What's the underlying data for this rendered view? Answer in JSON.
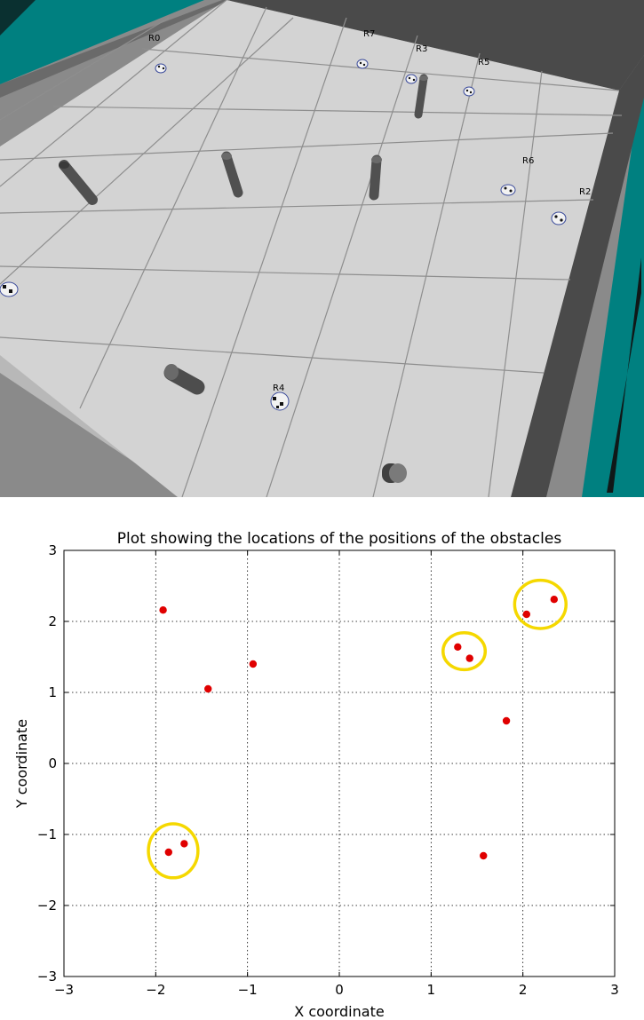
{
  "scene": {
    "colors": {
      "sea": "#008080",
      "floor": "#d3d3d3",
      "wall_dark": "#4a4a4a",
      "wall_light": "#8a8a8a",
      "obstacle": "#4d4d4d"
    },
    "robots": [
      {
        "label": "R0"
      },
      {
        "label": "R7"
      },
      {
        "label": "R3"
      },
      {
        "label": "R5"
      },
      {
        "label": "R6"
      },
      {
        "label": "R2"
      },
      {
        "label": "R4"
      }
    ]
  },
  "chart_data": {
    "type": "scatter",
    "title": "Plot showing the locations of the positions of the obstacles",
    "xlabel": "X coordinate",
    "ylabel": "Y coordinate",
    "xlim": [
      -3,
      3
    ],
    "ylim": [
      -3,
      3
    ],
    "xticks": [
      -3,
      -2,
      -1,
      0,
      1,
      2,
      3
    ],
    "yticks": [
      -3,
      -2,
      -1,
      0,
      1,
      2,
      3
    ],
    "tick_labels": [
      "−3",
      "−2",
      "−1",
      "0",
      "1",
      "2",
      "3"
    ],
    "grid": true,
    "point_color": "#e00000",
    "highlight_color": "#f5d800",
    "points": [
      {
        "x": -1.92,
        "y": 2.16
      },
      {
        "x": -1.43,
        "y": 1.05
      },
      {
        "x": -0.94,
        "y": 1.4
      },
      {
        "x": 1.29,
        "y": 1.64
      },
      {
        "x": 1.42,
        "y": 1.48
      },
      {
        "x": 2.04,
        "y": 2.1
      },
      {
        "x": 2.34,
        "y": 2.31
      },
      {
        "x": 1.82,
        "y": 0.6
      },
      {
        "x": -1.86,
        "y": -1.25
      },
      {
        "x": -1.69,
        "y": -1.13
      },
      {
        "x": 1.57,
        "y": -1.3
      }
    ],
    "highlights": [
      {
        "cx": 2.19,
        "cy": 2.24,
        "rx": 0.28,
        "ry": 0.34
      },
      {
        "cx": 1.36,
        "cy": 1.58,
        "rx": 0.23,
        "ry": 0.26
      },
      {
        "cx": -1.81,
        "cy": -1.23,
        "rx": 0.27,
        "ry": 0.38
      }
    ]
  }
}
